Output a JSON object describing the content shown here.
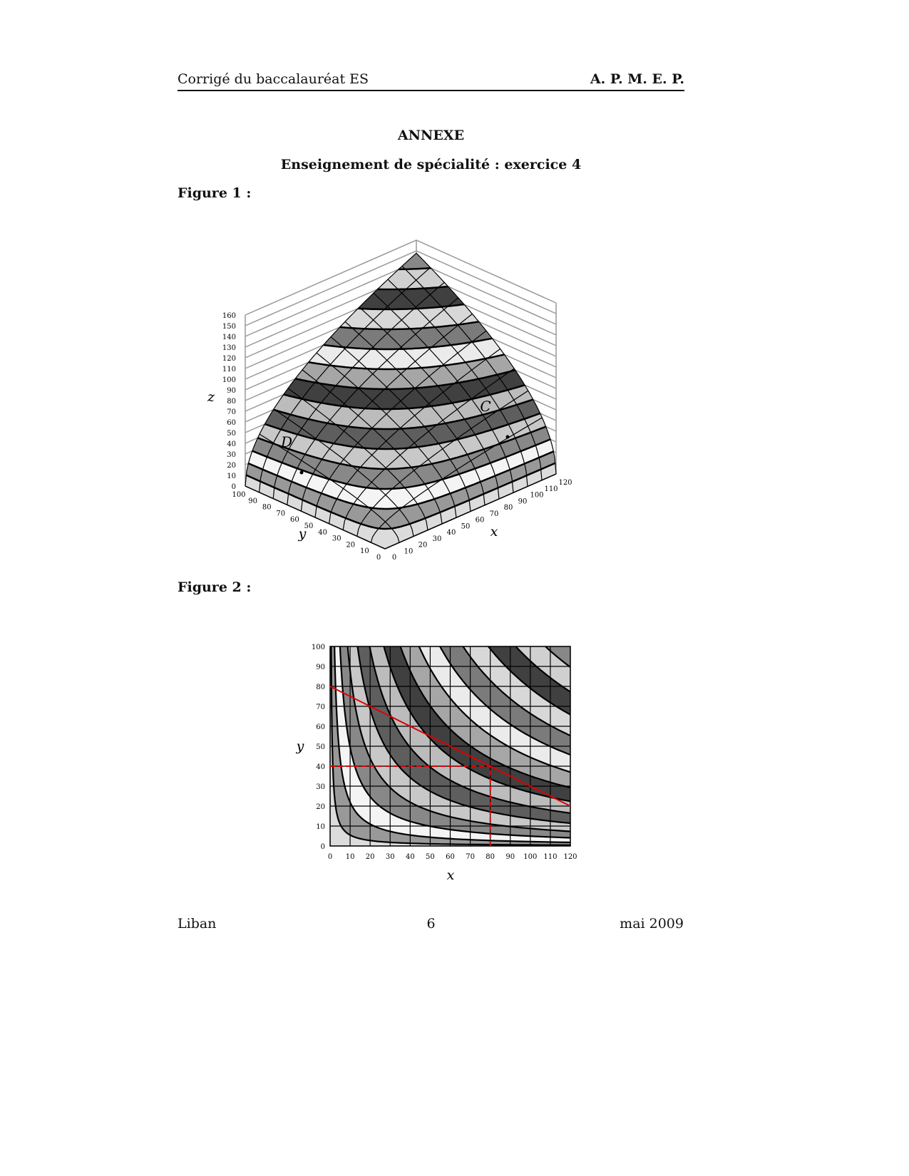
{
  "header": {
    "left": "Corrigé du baccalauréat ES",
    "right": "A. P. M. E. P."
  },
  "title": "ANNEXE",
  "subtitle": "Enseignement de spécialité : exercice 4",
  "figure1_label": "Figure 1 :",
  "figure2_label": "Figure 2 :",
  "footer": {
    "left": "Liban",
    "center": "6",
    "right": "mai 2009"
  },
  "palette": [
    "#dcdcdc",
    "#999999",
    "#f4f4f4",
    "#888888",
    "#c8c8c8",
    "#5e5e5e",
    "#bcbcbc",
    "#404040",
    "#a6a6a6",
    "#ebebeb",
    "#7b7b7b",
    "#d8d8d8",
    "#404040",
    "#d0d0d0",
    "#888888",
    "#dddddd"
  ],
  "chart_data": [
    {
      "type": "surface",
      "title": "Figure 1",
      "xlabel": "x",
      "ylabel": "y",
      "zlabel": "z",
      "xlim": [
        0,
        120
      ],
      "ylim": [
        0,
        100
      ],
      "zlim": [
        0,
        160
      ],
      "x_ticks": [
        "0",
        "10",
        "20",
        "30",
        "40",
        "50",
        "60",
        "70",
        "80",
        "90",
        "100",
        "110",
        "120"
      ],
      "y_ticks": [
        "0",
        "10",
        "20",
        "30",
        "40",
        "50",
        "60",
        "70",
        "80",
        "90",
        "100"
      ],
      "z_ticks": [
        "0",
        "10",
        "20",
        "30",
        "40",
        "50",
        "60",
        "70",
        "80",
        "90",
        "100",
        "110",
        "120",
        "130",
        "140",
        "150",
        "160"
      ],
      "surface_coefficient": 1.35,
      "contour_step": 10,
      "points": [
        {
          "label": "C"
        },
        {
          "label": "D"
        }
      ]
    },
    {
      "type": "contour",
      "title": "Figure 2",
      "xlabel": "x",
      "ylabel": "y",
      "xlim": [
        0,
        120
      ],
      "ylim": [
        0,
        100
      ],
      "x_ticks": [
        "0",
        "10",
        "20",
        "30",
        "40",
        "50",
        "60",
        "70",
        "80",
        "90",
        "100",
        "110",
        "120"
      ],
      "y_ticks": [
        "0",
        "10",
        "20",
        "30",
        "40",
        "50",
        "60",
        "70",
        "80",
        "90",
        "100"
      ],
      "contour_step": 10,
      "line": {
        "from": [
          0,
          80
        ],
        "to": [
          120,
          20
        ],
        "color": "#e00000"
      },
      "marked_point": {
        "x": 80,
        "y": 40
      }
    }
  ]
}
